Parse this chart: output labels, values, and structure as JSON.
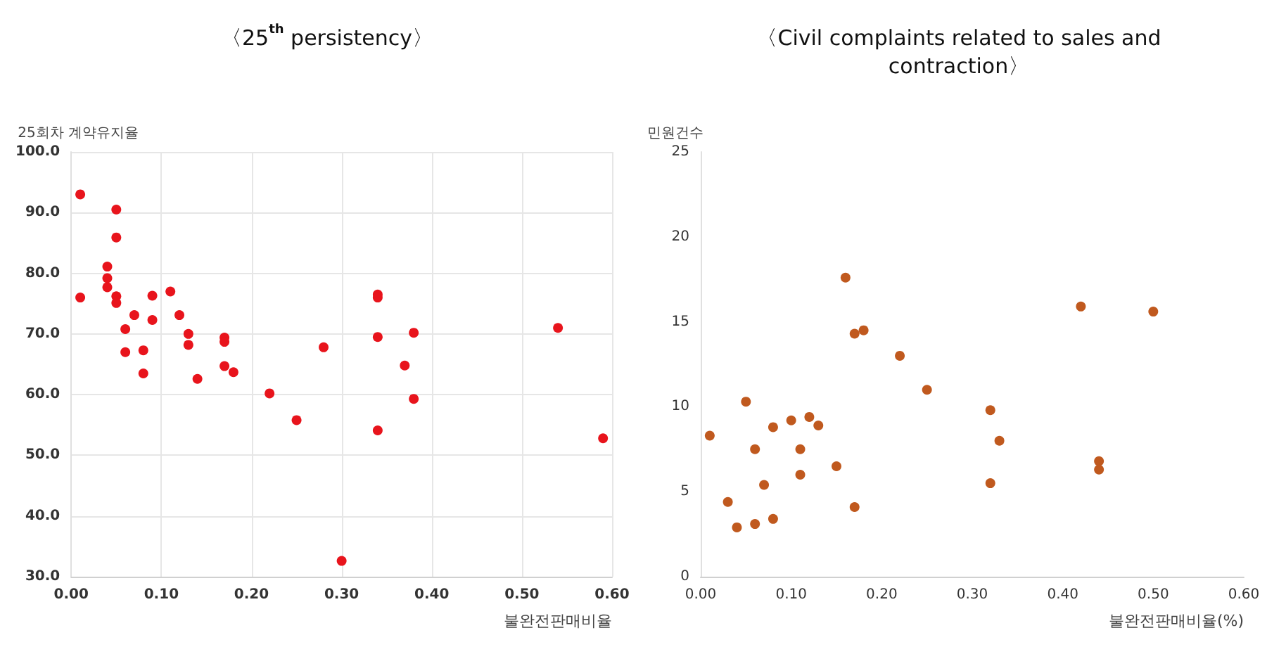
{
  "chart_data": [
    {
      "type": "scatter",
      "title": "〈25$^{th}$ persistency〉",
      "xlabel": "불완전판매비율",
      "ylabel": "25회차 계약유지율",
      "x": [
        0.01,
        0.01,
        0.05,
        0.05,
        0.04,
        0.04,
        0.04,
        0.05,
        0.05,
        0.07,
        0.06,
        0.06,
        0.08,
        0.08,
        0.09,
        0.09,
        0.11,
        0.12,
        0.13,
        0.13,
        0.14,
        0.17,
        0.17,
        0.17,
        0.18,
        0.22,
        0.25,
        0.28,
        0.34,
        0.34,
        0.34,
        0.38,
        0.37,
        0.38,
        0.34,
        0.3,
        0.54,
        0.59
      ],
      "series": [
        {
          "color": "#e8141c",
          "values": [
            93.0,
            76.0,
            90.5,
            85.9,
            81.1,
            79.2,
            77.7,
            76.2,
            75.1,
            73.1,
            70.8,
            67.0,
            67.3,
            63.5,
            76.3,
            72.3,
            77.0,
            73.1,
            70.0,
            68.2,
            62.6,
            69.4,
            68.7,
            64.7,
            63.7,
            60.2,
            55.8,
            67.8,
            76.5,
            76.0,
            69.5,
            70.2,
            64.8,
            59.3,
            54.1,
            32.6,
            71.0,
            52.8
          ]
        }
      ],
      "xlim": [
        0,
        0.6
      ],
      "xticks": [
        {
          "value": 0,
          "label": "0.00"
        },
        {
          "value": 0.1,
          "label": "0.10"
        },
        {
          "value": 0.2,
          "label": "0.20"
        },
        {
          "value": 0.3,
          "label": "0.30"
        },
        {
          "value": 0.4,
          "label": "0.40"
        },
        {
          "value": 0.5,
          "label": "0.50"
        },
        {
          "value": 0.6,
          "label": "0.60"
        }
      ],
      "ylim": [
        30,
        100
      ],
      "yticks": [
        {
          "value": 30,
          "label": "30.0"
        },
        {
          "value": 40,
          "label": "40.0"
        },
        {
          "value": 50,
          "label": "50.0"
        },
        {
          "value": 60,
          "label": "60.0"
        },
        {
          "value": 70,
          "label": "70.0"
        },
        {
          "value": 80,
          "label": "80.0"
        },
        {
          "value": 90,
          "label": "90.0"
        },
        {
          "value": 100,
          "label": "100.0"
        }
      ],
      "grid": true,
      "marker": "circle"
    },
    {
      "type": "scatter",
      "title": "〈Civil complaints related to sales and contraction〉",
      "xlabel": "불완전판매비율(%)",
      "ylabel": "민원건수",
      "x": [
        0.01,
        0.03,
        0.04,
        0.05,
        0.06,
        0.06,
        0.07,
        0.08,
        0.08,
        0.1,
        0.11,
        0.11,
        0.12,
        0.13,
        0.15,
        0.16,
        0.17,
        0.18,
        0.17,
        0.22,
        0.25,
        0.32,
        0.33,
        0.32,
        0.42,
        0.5,
        0.44,
        0.44
      ],
      "series": [
        {
          "color": "#c0591e",
          "values": [
            8.3,
            4.4,
            2.9,
            10.3,
            7.5,
            3.1,
            5.4,
            8.8,
            3.4,
            9.2,
            7.5,
            6.0,
            9.4,
            8.9,
            6.5,
            17.6,
            14.3,
            14.5,
            4.1,
            13.0,
            11.0,
            9.8,
            8.0,
            5.5,
            15.9,
            15.6,
            6.8,
            6.3
          ]
        }
      ],
      "xlim": [
        0,
        0.6
      ],
      "xticks": [
        {
          "value": 0,
          "label": "0.00"
        },
        {
          "value": 0.1,
          "label": "0.10"
        },
        {
          "value": 0.2,
          "label": "0.20"
        },
        {
          "value": 0.3,
          "label": "0.30"
        },
        {
          "value": 0.4,
          "label": "0.40"
        },
        {
          "value": 0.5,
          "label": "0.50"
        },
        {
          "value": 0.6,
          "label": "0.60"
        }
      ],
      "ylim": [
        0,
        25
      ],
      "yticks": [
        0,
        5,
        10,
        15,
        20,
        25
      ],
      "grid": false,
      "marker": "circle"
    }
  ]
}
